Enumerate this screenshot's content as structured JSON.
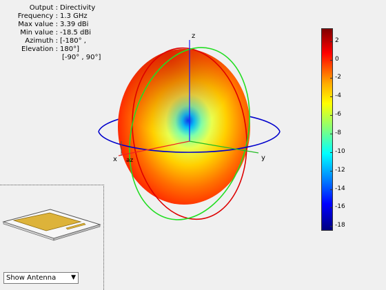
{
  "info": {
    "rows": [
      {
        "key": "Output :",
        "value": "Directivity"
      },
      {
        "key": "Frequency :",
        "value": "1.3 GHz"
      },
      {
        "key": "Max value :",
        "value": "3.39 dBi"
      },
      {
        "key": "Min value :",
        "value": "-18.5 dBi"
      },
      {
        "key": "Azimuth :",
        "value": "[-180° ,"
      },
      {
        "key": "Elevation :",
        "value": "180°]"
      }
    ],
    "continuation": "[-90° , 90°]"
  },
  "axes": {
    "x": "x",
    "y": "y",
    "z": "z",
    "az": "az"
  },
  "colorbar": {
    "ticks": [
      {
        "label": "2",
        "value": 2
      },
      {
        "label": "0",
        "value": 0
      },
      {
        "label": "-2",
        "value": -2
      },
      {
        "label": "-4",
        "value": -4
      },
      {
        "label": "-6",
        "value": -6
      },
      {
        "label": "-8",
        "value": -8
      },
      {
        "label": "-10",
        "value": -10
      },
      {
        "label": "-12",
        "value": -12
      },
      {
        "label": "-14",
        "value": -14
      },
      {
        "label": "-16",
        "value": -16
      },
      {
        "label": "-18",
        "value": -18
      }
    ],
    "max": 3.39,
    "min": -18.5
  },
  "dropdown": {
    "selected": "Show Antenna"
  }
}
